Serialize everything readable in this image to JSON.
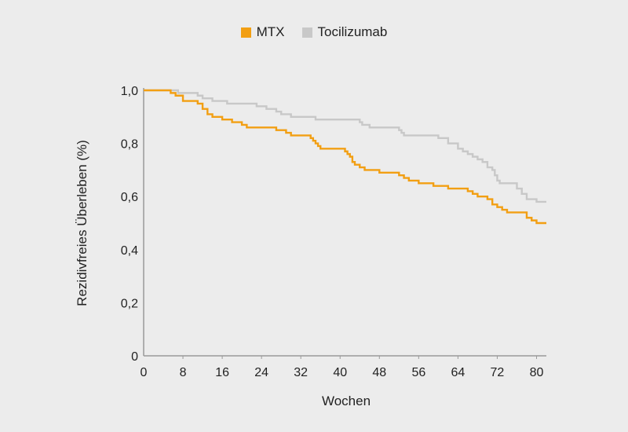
{
  "chart_data": {
    "type": "line",
    "title": "",
    "xlabel": "Wochen",
    "ylabel": "Rezidivfreies Überleben (%)",
    "xlim": [
      0,
      82
    ],
    "ylim": [
      0,
      1.0
    ],
    "x_ticks": [
      0,
      8,
      16,
      24,
      32,
      40,
      48,
      56,
      64,
      72,
      80
    ],
    "x_tick_labels": [
      "0",
      "8",
      "16",
      "24",
      "32",
      "40",
      "48",
      "56",
      "64",
      "72",
      "80"
    ],
    "y_ticks": [
      0,
      0.2,
      0.4,
      0.6,
      0.8,
      1.0
    ],
    "y_tick_labels": [
      "0",
      "0,2",
      "0,4",
      "0,6",
      "0,8",
      "1,0"
    ],
    "grid": false,
    "legend_position": "top-center",
    "series": [
      {
        "name": "MTX",
        "color": "#f29f13",
        "step": true,
        "x": [
          0,
          5.5,
          6.5,
          8,
          11,
          12,
          13,
          14,
          16,
          18,
          20,
          21,
          24,
          26,
          27,
          29,
          30,
          33,
          34,
          34.5,
          35,
          35.5,
          36,
          40,
          41,
          41.5,
          42,
          42.5,
          43,
          44,
          45,
          48,
          52,
          53,
          54,
          56,
          59,
          62,
          66,
          67,
          68,
          69,
          70,
          71,
          72,
          73,
          74,
          78,
          79,
          80,
          82
        ],
        "y": [
          1.0,
          0.99,
          0.98,
          0.96,
          0.95,
          0.93,
          0.91,
          0.9,
          0.89,
          0.88,
          0.87,
          0.86,
          0.86,
          0.86,
          0.85,
          0.84,
          0.83,
          0.83,
          0.82,
          0.81,
          0.8,
          0.79,
          0.78,
          0.78,
          0.77,
          0.76,
          0.75,
          0.73,
          0.72,
          0.71,
          0.7,
          0.69,
          0.68,
          0.67,
          0.66,
          0.65,
          0.64,
          0.63,
          0.62,
          0.61,
          0.6,
          0.6,
          0.59,
          0.57,
          0.56,
          0.55,
          0.54,
          0.52,
          0.51,
          0.5,
          0.5
        ]
      },
      {
        "name": "Tocilizumab",
        "color": "#c8c8c8",
        "step": true,
        "x": [
          0,
          7,
          11,
          12,
          14,
          17,
          20,
          23,
          25,
          27,
          28,
          30,
          35,
          40,
          44,
          44.5,
          46,
          49,
          52,
          52.5,
          53,
          56,
          60,
          62,
          64,
          65,
          66,
          67,
          68,
          69,
          70,
          71,
          71.5,
          72,
          72.5,
          73,
          76,
          77,
          78,
          80,
          82
        ],
        "y": [
          1.0,
          0.99,
          0.98,
          0.97,
          0.96,
          0.95,
          0.95,
          0.94,
          0.93,
          0.92,
          0.91,
          0.9,
          0.89,
          0.89,
          0.88,
          0.87,
          0.86,
          0.86,
          0.85,
          0.84,
          0.83,
          0.83,
          0.82,
          0.8,
          0.78,
          0.77,
          0.76,
          0.75,
          0.74,
          0.73,
          0.71,
          0.7,
          0.68,
          0.66,
          0.65,
          0.65,
          0.63,
          0.61,
          0.59,
          0.58,
          0.58
        ]
      }
    ]
  }
}
